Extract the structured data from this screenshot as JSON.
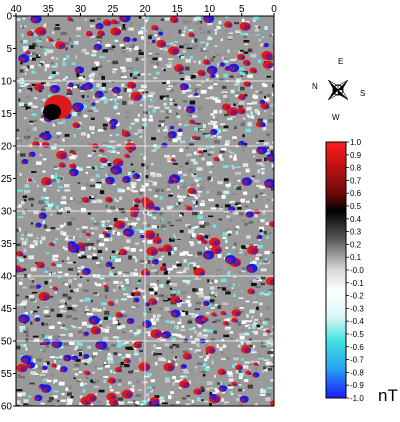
{
  "map": {
    "x_axis": {
      "min": 0,
      "max": 40,
      "reversed": true,
      "tick_labels": [
        "40",
        "35",
        "30",
        "25",
        "20",
        "15",
        "10",
        "5",
        "0"
      ]
    },
    "y_axis": {
      "min": 0,
      "max": 60,
      "reversed": true,
      "tick_labels": [
        "0",
        "5",
        "10",
        "15",
        "20",
        "25",
        "30",
        "35",
        "40",
        "45",
        "50",
        "55",
        "60"
      ]
    },
    "grid": true,
    "grid_color": "#ffffff",
    "palette": {
      "positive_high": "#ff2020",
      "positive_mid": "#a31010",
      "neutral_dark": "#000000",
      "neutral_light": "#ffffff",
      "negative_mid": "#40e0e0",
      "negative_high": "#2020ff"
    }
  },
  "colorbar": {
    "labels": [
      "1.0",
      "0.9",
      "0.8",
      "0.7",
      "0.6",
      "0.5",
      "0.4",
      "0.3",
      "0.2",
      "0.1",
      "-0.0",
      "-0.1",
      "-0.2",
      "-0.3",
      "-0.4",
      "-0.5",
      "-0.6",
      "-0.7",
      "-0.8",
      "-0.9",
      "-1.0"
    ],
    "unit": "nT",
    "min": -1.0,
    "max": 1.0
  },
  "compass": {
    "labels": {
      "n": "N",
      "e": "E",
      "s": "S",
      "w": "W"
    },
    "icon": "compass-rose-icon"
  }
}
